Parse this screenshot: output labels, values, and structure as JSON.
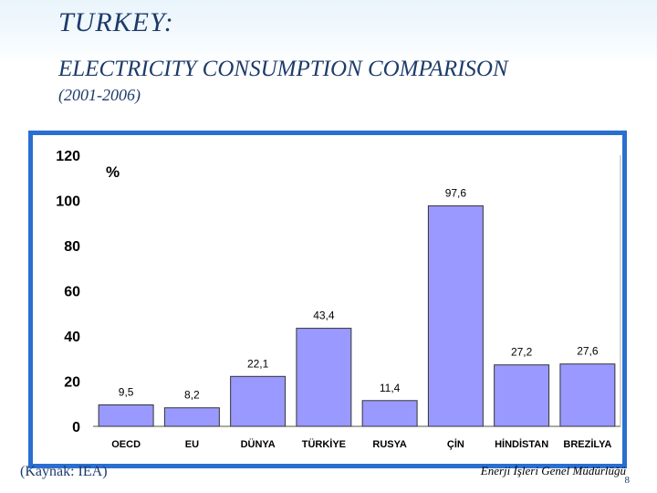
{
  "slide": {
    "title": "TURKEY:",
    "subtitle": "ELECTRICITY CONSUMPTION COMPARISON",
    "period": "(2001-2006)",
    "source": "(Kaynak: IEA)",
    "organization": "Enerji İşleri Genel Müdürlüğü",
    "page_number": "8"
  },
  "colors": {
    "bar_fill": "#9999ff",
    "bar_stroke": "#333333",
    "frame": "#2a6fd0",
    "title": "#1d3b6b"
  },
  "chart_data": {
    "type": "bar",
    "unit_label": "%",
    "categories": [
      "OECD",
      "EU",
      "DÜNYA",
      "TÜRKİYE",
      "RUSYA",
      "ÇİN",
      "HİNDİSTAN",
      "BREZİLYA"
    ],
    "values": [
      9.5,
      8.2,
      22.1,
      43.4,
      11.4,
      97.6,
      27.2,
      27.6
    ],
    "value_labels": [
      "9,5",
      "8,2",
      "22,1",
      "43,4",
      "11,4",
      "97,6",
      "27,2",
      "27,6"
    ],
    "yticks": [
      "0",
      "20",
      "40",
      "60",
      "80",
      "100",
      "120"
    ],
    "ylim": [
      0,
      120
    ],
    "grid": false,
    "legend": "none"
  }
}
